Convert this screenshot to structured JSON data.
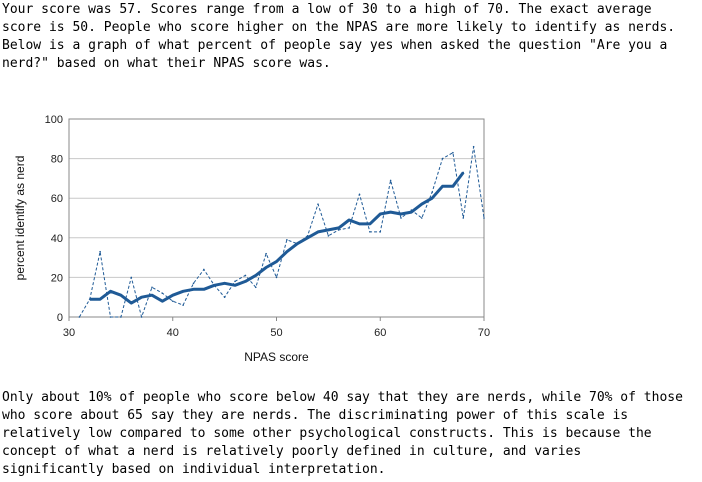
{
  "text": {
    "intro": "Your score was 57. Scores range from a low of 30 to a high of 70. The exact average\nscore is 50. People who score higher on the NPAS are more likely to identify as nerds.\nBelow is a graph of what percent of people say yes when asked the question \"Are you a\nnerd?\" based on what their NPAS score was.",
    "outro": "Only about 10% of people who score below 40 say that they are nerds, while 70% of those\nwho score about 65 say they are nerds. The discriminating power of this scale is\nrelatively low compared to some other psychological constructs. This is because the\nconcept of what a nerd is relatively poorly defined in culture, and varies\nsignificantly based on individual interpretation."
  },
  "chart_data": {
    "type": "line",
    "xlabel": "NPAS score",
    "ylabel": "percent identify as nerd",
    "xlim": [
      30,
      70
    ],
    "ylim": [
      0,
      100
    ],
    "xticks": [
      30,
      40,
      50,
      60,
      70
    ],
    "yticks": [
      0,
      20,
      40,
      60,
      80,
      100
    ],
    "grid": true,
    "colors": {
      "series": "#1f5a96",
      "grid": "#c8c8c8",
      "axis": "#888888"
    },
    "series": [
      {
        "style": "dashed",
        "x": [
          31,
          32,
          33,
          34,
          35,
          36,
          37,
          38,
          39,
          40,
          41,
          42,
          43,
          44,
          45,
          46,
          47,
          48,
          49,
          50,
          51,
          52,
          53,
          54,
          55,
          56,
          57,
          58,
          59,
          60,
          61,
          62,
          63,
          64,
          65,
          66,
          67,
          68,
          69,
          70
        ],
        "y": [
          0,
          9,
          33,
          0,
          0,
          20,
          0,
          15,
          12,
          8,
          6,
          17,
          24,
          16,
          10,
          18,
          21,
          15,
          32,
          20,
          39,
          37,
          41,
          57,
          41,
          44,
          45,
          62,
          43,
          43,
          69,
          50,
          54,
          50,
          63,
          80,
          83,
          50,
          86,
          50
        ]
      },
      {
        "style": "solid",
        "x": [
          32,
          33,
          34,
          35,
          36,
          37,
          38,
          39,
          40,
          41,
          42,
          43,
          44,
          45,
          46,
          47,
          48,
          49,
          50,
          51,
          52,
          53,
          54,
          55,
          56,
          57,
          58,
          59,
          60,
          61,
          62,
          63,
          64,
          65,
          66,
          67,
          68
        ],
        "y": [
          9,
          9,
          13,
          11,
          7,
          10,
          11,
          8,
          11,
          13,
          14,
          14,
          16,
          17,
          16,
          18,
          21,
          25,
          28,
          33,
          37,
          40,
          43,
          44,
          45,
          49,
          47,
          47,
          52,
          53,
          52,
          53,
          57,
          60,
          66,
          66,
          73
        ]
      }
    ]
  }
}
